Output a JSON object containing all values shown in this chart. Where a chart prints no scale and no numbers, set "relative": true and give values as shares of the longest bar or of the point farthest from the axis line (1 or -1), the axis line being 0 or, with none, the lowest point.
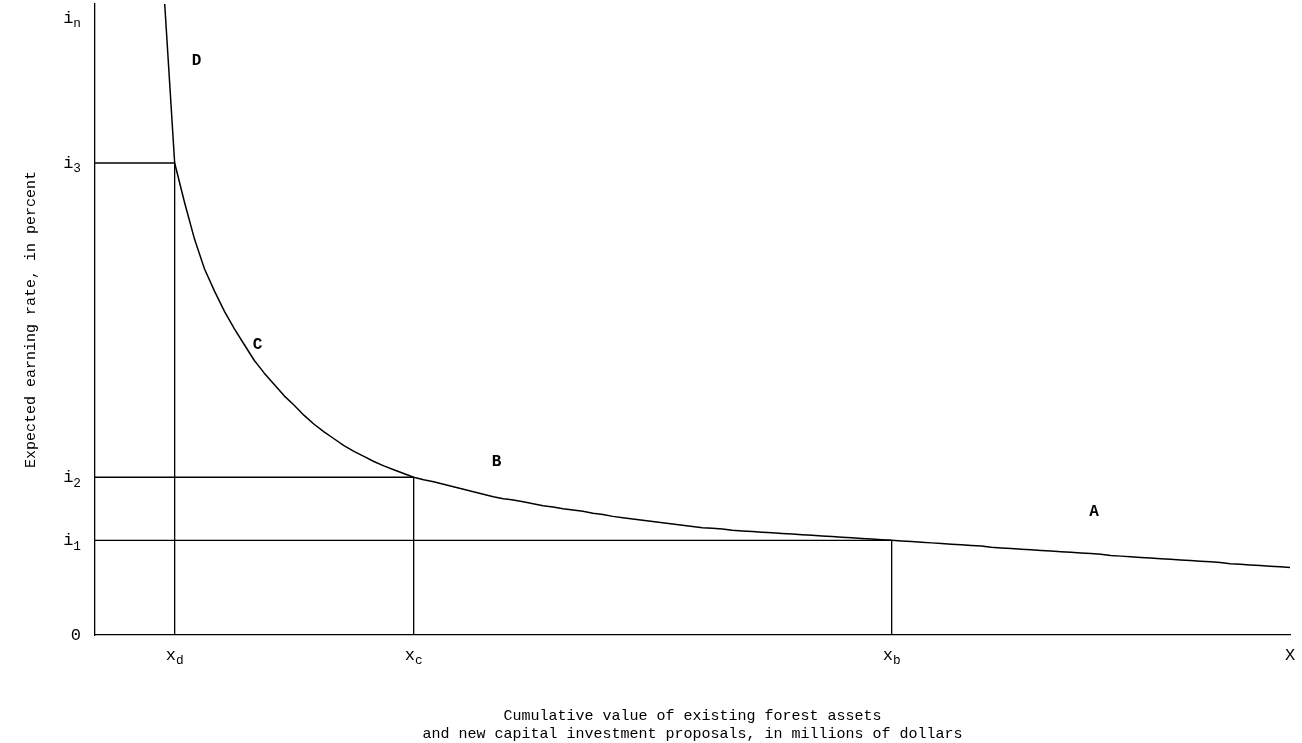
{
  "chart_data": {
    "type": "line",
    "relative": true,
    "xlabel": "Cumulative value of existing forest assets\nand new capital investment proposals, in millions of dollars",
    "ylabel": "Expected earning rate, in percent",
    "categories": [
      null,
      null,
      null,
      null,
      null,
      null,
      null,
      null,
      "x$_{d}$",
      null,
      null,
      null,
      null,
      null,
      null,
      null,
      null,
      null,
      null,
      null,
      null,
      null,
      null,
      null,
      null,
      null,
      null,
      null,
      null,
      null,
      null,
      null,
      "x$_{c}$",
      null,
      null,
      null,
      null,
      null,
      null,
      null,
      null,
      null,
      null,
      null,
      null,
      null,
      null,
      null,
      null,
      null,
      null,
      null,
      null,
      null,
      null,
      null,
      null,
      null,
      null,
      null,
      null,
      null,
      null,
      null,
      null,
      null,
      null,
      null,
      null,
      null,
      null,
      null,
      null,
      null,
      null,
      null,
      null,
      null,
      null,
      null,
      "x$_{b}$",
      null,
      null,
      null,
      null,
      null,
      null,
      null,
      null,
      null,
      null,
      null,
      null,
      null,
      null,
      null,
      null,
      null,
      null,
      null,
      null,
      null,
      null,
      null,
      null,
      null,
      null,
      null,
      null,
      null,
      null,
      null,
      null,
      null,
      null,
      null,
      null,
      null,
      null,
      null,
      "X"
    ],
    "series": [
      {
        "color": "#000000",
        "values": [
          null,
          null,
          null,
          null,
          null,
          null,
          null,
          1.0,
          0.748,
          0.685,
          0.627,
          0.58,
          0.545,
          0.513,
          0.485,
          0.46,
          0.435,
          0.415,
          0.397,
          0.379,
          0.364,
          0.348,
          0.334,
          0.322,
          0.311,
          0.3,
          0.291,
          0.283,
          0.275,
          0.268,
          0.262,
          0.256,
          0.25,
          0.246,
          0.243,
          0.239,
          0.235,
          0.231,
          0.227,
          0.223,
          0.219,
          0.216,
          0.214,
          0.211,
          0.208,
          0.205,
          0.203,
          0.2,
          0.198,
          0.196,
          0.193,
          0.191,
          0.188,
          0.186,
          0.184,
          0.182,
          0.18,
          0.178,
          0.176,
          0.174,
          0.172,
          0.17,
          0.169,
          0.168,
          0.166,
          0.165,
          0.164,
          0.163,
          0.162,
          0.161,
          0.16,
          0.159,
          0.158,
          0.157,
          0.156,
          0.155,
          0.154,
          0.153,
          0.152,
          0.151,
          0.15,
          0.149,
          0.148,
          0.147,
          0.146,
          0.145,
          0.144,
          0.143,
          0.142,
          0.141,
          0.139,
          0.138,
          0.137,
          0.136,
          0.135,
          0.134,
          0.133,
          0.132,
          0.131,
          0.13,
          0.129,
          0.128,
          0.126,
          0.125,
          0.124,
          0.123,
          0.122,
          0.121,
          0.12,
          0.119,
          0.118,
          0.117,
          0.116,
          0.115,
          0.113,
          0.112,
          0.111,
          0.11,
          0.109,
          0.108,
          0.107
        ]
      }
    ],
    "ref_lines": [
      {
        "axis": "y",
        "value": 0.748,
        "label": "i$_{3}$",
        "color": "#000000"
      },
      {
        "axis": "y",
        "value": 0.25,
        "label": "i$_{2}$",
        "color": "#000000"
      },
      {
        "axis": "y",
        "value": 0.15,
        "label": "i$_{1}$",
        "color": "#000000"
      },
      {
        "axis": "x",
        "value": "x$_{d}$",
        "color": "#000000"
      },
      {
        "axis": "x",
        "value": "x$_{c}$",
        "color": "#000000"
      },
      {
        "axis": "x",
        "value": "x$_{b}$",
        "color": "#000000"
      }
    ],
    "annotations": [
      "i$_{n}$",
      "0",
      "D",
      "C",
      "B",
      "A"
    ],
    "grid": false,
    "legend": false,
    "marker": "none",
    "line_style": "solid"
  }
}
